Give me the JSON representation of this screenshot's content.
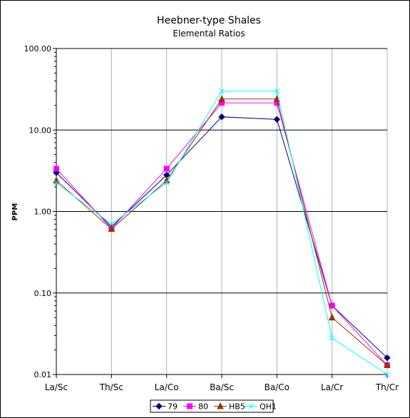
{
  "chart_data": {
    "type": "line",
    "title": "Heebner-type Shales",
    "subtitle": "Elemental Ratios",
    "xlabel": "",
    "ylabel": "PPM",
    "yscale": "log",
    "ylim": [
      0.01,
      100
    ],
    "yticks": [
      0.01,
      0.1,
      1,
      10,
      100
    ],
    "ytick_labels": [
      "0.01",
      "0.10",
      "1.00",
      "10.00",
      "100.00"
    ],
    "grid": "horizontal and vertical",
    "legend_position": "bottom",
    "categories": [
      "La/Sc",
      "Th/Sc",
      "La/Co",
      "Ba/Sc",
      "Ba/Co",
      "La/Cr",
      "Th/Cr"
    ],
    "series": [
      {
        "name": "79",
        "color": "#000080",
        "marker": "diamond",
        "values": [
          3.0,
          0.65,
          2.8,
          14.5,
          13.5,
          0.07,
          0.016
        ]
      },
      {
        "name": "80",
        "color": "#ff00ff",
        "marker": "square",
        "values": [
          3.35,
          0.62,
          3.35,
          21.5,
          21.5,
          0.07,
          0.013
        ]
      },
      {
        "name": "HB5",
        "color": "#993300",
        "marker": "triangle",
        "values": [
          2.4,
          0.61,
          2.4,
          24.0,
          24.0,
          0.05,
          0.013
        ]
      },
      {
        "name": "QH1",
        "color": "#00ffff",
        "marker": "x",
        "values": [
          2.25,
          0.7,
          2.25,
          30.0,
          30.0,
          0.028,
          0.01
        ]
      }
    ]
  }
}
